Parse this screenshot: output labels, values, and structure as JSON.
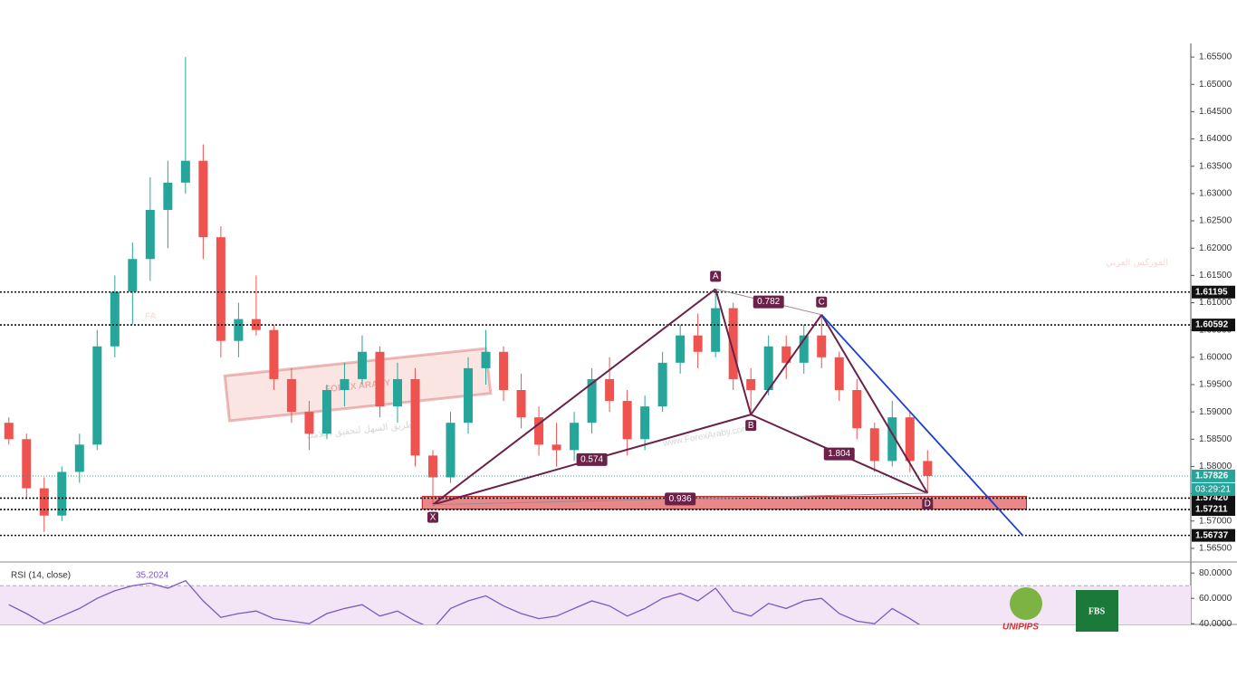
{
  "chart_data": [
    {
      "type": "candlestick",
      "up_color": "#26a69a",
      "down_color": "#ef5350",
      "xlim": [
        -0.5,
        66.9
      ],
      "ylim": [
        1.5625,
        1.6575
      ],
      "yticks": [
        {
          "value": 1.655,
          "label": "1.65500"
        },
        {
          "value": 1.65,
          "label": "1.65000"
        },
        {
          "value": 1.645,
          "label": "1.64500"
        },
        {
          "value": 1.64,
          "label": "1.64000"
        },
        {
          "value": 1.635,
          "label": "1.63500"
        },
        {
          "value": 1.63,
          "label": "1.63000"
        },
        {
          "value": 1.625,
          "label": "1.62500"
        },
        {
          "value": 1.62,
          "label": "1.62000"
        },
        {
          "value": 1.615,
          "label": "1.61500"
        },
        {
          "value": 1.61,
          "label": "1.61000"
        },
        {
          "value": 1.605,
          "label": "1.60500"
        },
        {
          "value": 1.6,
          "label": "1.60000"
        },
        {
          "value": 1.595,
          "label": "1.59500"
        },
        {
          "value": 1.59,
          "label": "1.59000"
        },
        {
          "value": 1.585,
          "label": "1.58500"
        },
        {
          "value": 1.58,
          "label": "1.58000"
        },
        {
          "value": 1.575,
          "label": "1.57500"
        },
        {
          "value": 1.57,
          "label": "1.57000"
        },
        {
          "value": 1.565,
          "label": "1.56500"
        }
      ],
      "candles": [
        [
          1.588,
          1.589,
          1.584,
          1.585
        ],
        [
          1.585,
          1.586,
          1.574,
          1.576
        ],
        [
          1.576,
          1.578,
          1.568,
          1.571
        ],
        [
          1.571,
          1.58,
          1.57,
          1.579
        ],
        [
          1.579,
          1.586,
          1.577,
          1.584
        ],
        [
          1.584,
          1.605,
          1.583,
          1.602
        ],
        [
          1.602,
          1.615,
          1.6,
          1.612
        ],
        [
          1.612,
          1.621,
          1.606,
          1.618
        ],
        [
          1.618,
          1.633,
          1.614,
          1.627
        ],
        [
          1.627,
          1.636,
          1.62,
          1.632
        ],
        [
          1.632,
          1.655,
          1.63,
          1.636
        ],
        [
          1.636,
          1.639,
          1.618,
          1.622
        ],
        [
          1.622,
          1.624,
          1.6,
          1.603
        ],
        [
          1.603,
          1.61,
          1.6,
          1.607
        ],
        [
          1.607,
          1.615,
          1.604,
          1.605
        ],
        [
          1.605,
          1.606,
          1.594,
          1.596
        ],
        [
          1.596,
          1.598,
          1.588,
          1.59
        ],
        [
          1.59,
          1.592,
          1.583,
          1.586
        ],
        [
          1.586,
          1.595,
          1.585,
          1.594
        ],
        [
          1.594,
          1.599,
          1.591,
          1.596
        ],
        [
          1.596,
          1.604,
          1.595,
          1.601
        ],
        [
          1.601,
          1.602,
          1.589,
          1.591
        ],
        [
          1.591,
          1.599,
          1.588,
          1.596
        ],
        [
          1.596,
          1.598,
          1.58,
          1.582
        ],
        [
          1.582,
          1.583,
          1.573,
          1.578
        ],
        [
          1.578,
          1.59,
          1.577,
          1.588
        ],
        [
          1.588,
          1.6,
          1.586,
          1.598
        ],
        [
          1.598,
          1.605,
          1.595,
          1.601
        ],
        [
          1.601,
          1.602,
          1.592,
          1.594
        ],
        [
          1.594,
          1.597,
          1.587,
          1.589
        ],
        [
          1.589,
          1.591,
          1.582,
          1.584
        ],
        [
          1.584,
          1.588,
          1.58,
          1.583
        ],
        [
          1.583,
          1.59,
          1.581,
          1.588
        ],
        [
          1.588,
          1.598,
          1.586,
          1.596
        ],
        [
          1.596,
          1.6,
          1.59,
          1.592
        ],
        [
          1.592,
          1.594,
          1.582,
          1.585
        ],
        [
          1.585,
          1.593,
          1.583,
          1.591
        ],
        [
          1.591,
          1.601,
          1.59,
          1.599
        ],
        [
          1.599,
          1.606,
          1.597,
          1.604
        ],
        [
          1.604,
          1.608,
          1.598,
          1.601
        ],
        [
          1.601,
          1.6125,
          1.6,
          1.609
        ],
        [
          1.609,
          1.61,
          1.594,
          1.596
        ],
        [
          1.596,
          1.598,
          1.5895,
          1.594
        ],
        [
          1.594,
          1.604,
          1.593,
          1.602
        ],
        [
          1.602,
          1.604,
          1.596,
          1.599
        ],
        [
          1.599,
          1.606,
          1.597,
          1.604
        ],
        [
          1.604,
          1.6078,
          1.598,
          1.6
        ],
        [
          1.6,
          1.601,
          1.592,
          1.594
        ],
        [
          1.594,
          1.596,
          1.585,
          1.587
        ],
        [
          1.587,
          1.588,
          1.579,
          1.581
        ],
        [
          1.581,
          1.592,
          1.58,
          1.589
        ],
        [
          1.589,
          1.59,
          1.579,
          1.581
        ],
        [
          1.581,
          1.583,
          1.5751,
          1.57826
        ]
      ],
      "levels": [
        1.61195,
        1.60592,
        {
          "value": 1.5742,
          "label": "1.57420"
        },
        1.57211,
        1.56737
      ],
      "last_price": 1.57826,
      "last_price_color": "#26a69a",
      "countdown": "03:29:21",
      "zone": {
        "color": "#e57373",
        "from_index": 23.4,
        "to_index": 57.6,
        "low": 1.5722,
        "high": 1.5745
      },
      "pattern": {
        "color": "#6b2148",
        "points": [
          {
            "label": "X",
            "index": 24,
            "price": 1.573
          },
          {
            "label": "A",
            "index": 40,
            "price": 1.6125
          },
          {
            "label": "B",
            "index": 42,
            "price": 1.5895
          },
          {
            "label": "C",
            "index": 46,
            "price": 1.6078
          },
          {
            "label": "D",
            "index": 52,
            "price": 1.5751
          }
        ],
        "ratios": [
          0.782,
          0.574,
          1.804,
          0.936
        ]
      },
      "projection": {
        "color": "#1a3fd1",
        "from_index": 46,
        "from_price": 1.6078,
        "to_index": 57.4,
        "to_price": 1.5673
      },
      "watermark": {
        "logo": "FA",
        "brand": "FOREX ARABY",
        "arabic": "الفوركس العربي",
        "slogan": "الطريق السهل لتحقيق أحلامك",
        "url": "www.ForexAraby.com"
      }
    },
    {
      "type": "line",
      "title": "RSI (14, close)",
      "last": 35.2024,
      "color": "#7e57c2",
      "band_color": "#f3e5f5",
      "band": [
        30,
        70
      ],
      "ylim": [
        38,
        88
      ],
      "yticks": [
        {
          "value": 80,
          "label": "80.0000"
        },
        {
          "value": 60,
          "label": "60.0000"
        },
        {
          "value": 40,
          "label": "40.0000"
        }
      ],
      "values": [
        55,
        48,
        40,
        46,
        52,
        60,
        66,
        70,
        72,
        68,
        74,
        58,
        45,
        48,
        50,
        44,
        42,
        40,
        48,
        52,
        55,
        46,
        50,
        42,
        36,
        52,
        58,
        62,
        54,
        48,
        44,
        46,
        52,
        58,
        54,
        46,
        52,
        60,
        64,
        58,
        68,
        50,
        46,
        56,
        52,
        58,
        60,
        48,
        42,
        40,
        52,
        44,
        35.2024
      ]
    }
  ],
  "logos": {
    "unipips": "UNIPIPS",
    "fbs": "FBS"
  }
}
